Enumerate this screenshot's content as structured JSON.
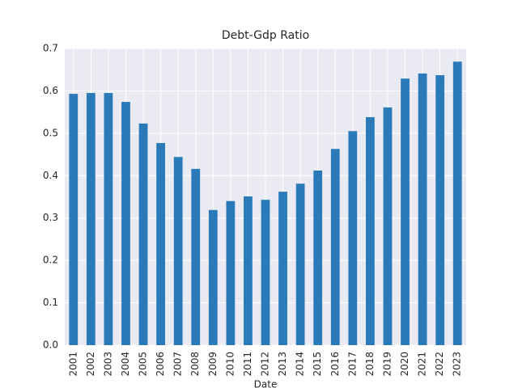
{
  "chart_data": {
    "type": "bar",
    "title": "Debt-Gdp Ratio",
    "x_label": "Date",
    "categories": [
      "2001",
      "2002",
      "2003",
      "2004",
      "2005",
      "2006",
      "2007",
      "2008",
      "2009",
      "2010",
      "2011",
      "2012",
      "2013",
      "2014",
      "2015",
      "2016",
      "2017",
      "2018",
      "2019",
      "2020",
      "2021",
      "2022",
      "2023"
    ],
    "values": [
      0.593,
      0.595,
      0.595,
      0.574,
      0.523,
      0.477,
      0.444,
      0.416,
      0.319,
      0.34,
      0.351,
      0.343,
      0.362,
      0.381,
      0.412,
      0.463,
      0.505,
      0.538,
      0.561,
      0.629,
      0.641,
      0.637,
      0.669
    ],
    "color": "#2a7ab9",
    "ylim": [
      0,
      0.7
    ],
    "yticks": [
      {
        "value": 0,
        "label": "0.0"
      },
      0.1,
      0.2,
      0.3,
      0.4,
      0.5,
      0.6,
      0.7
    ],
    "grid": true
  }
}
